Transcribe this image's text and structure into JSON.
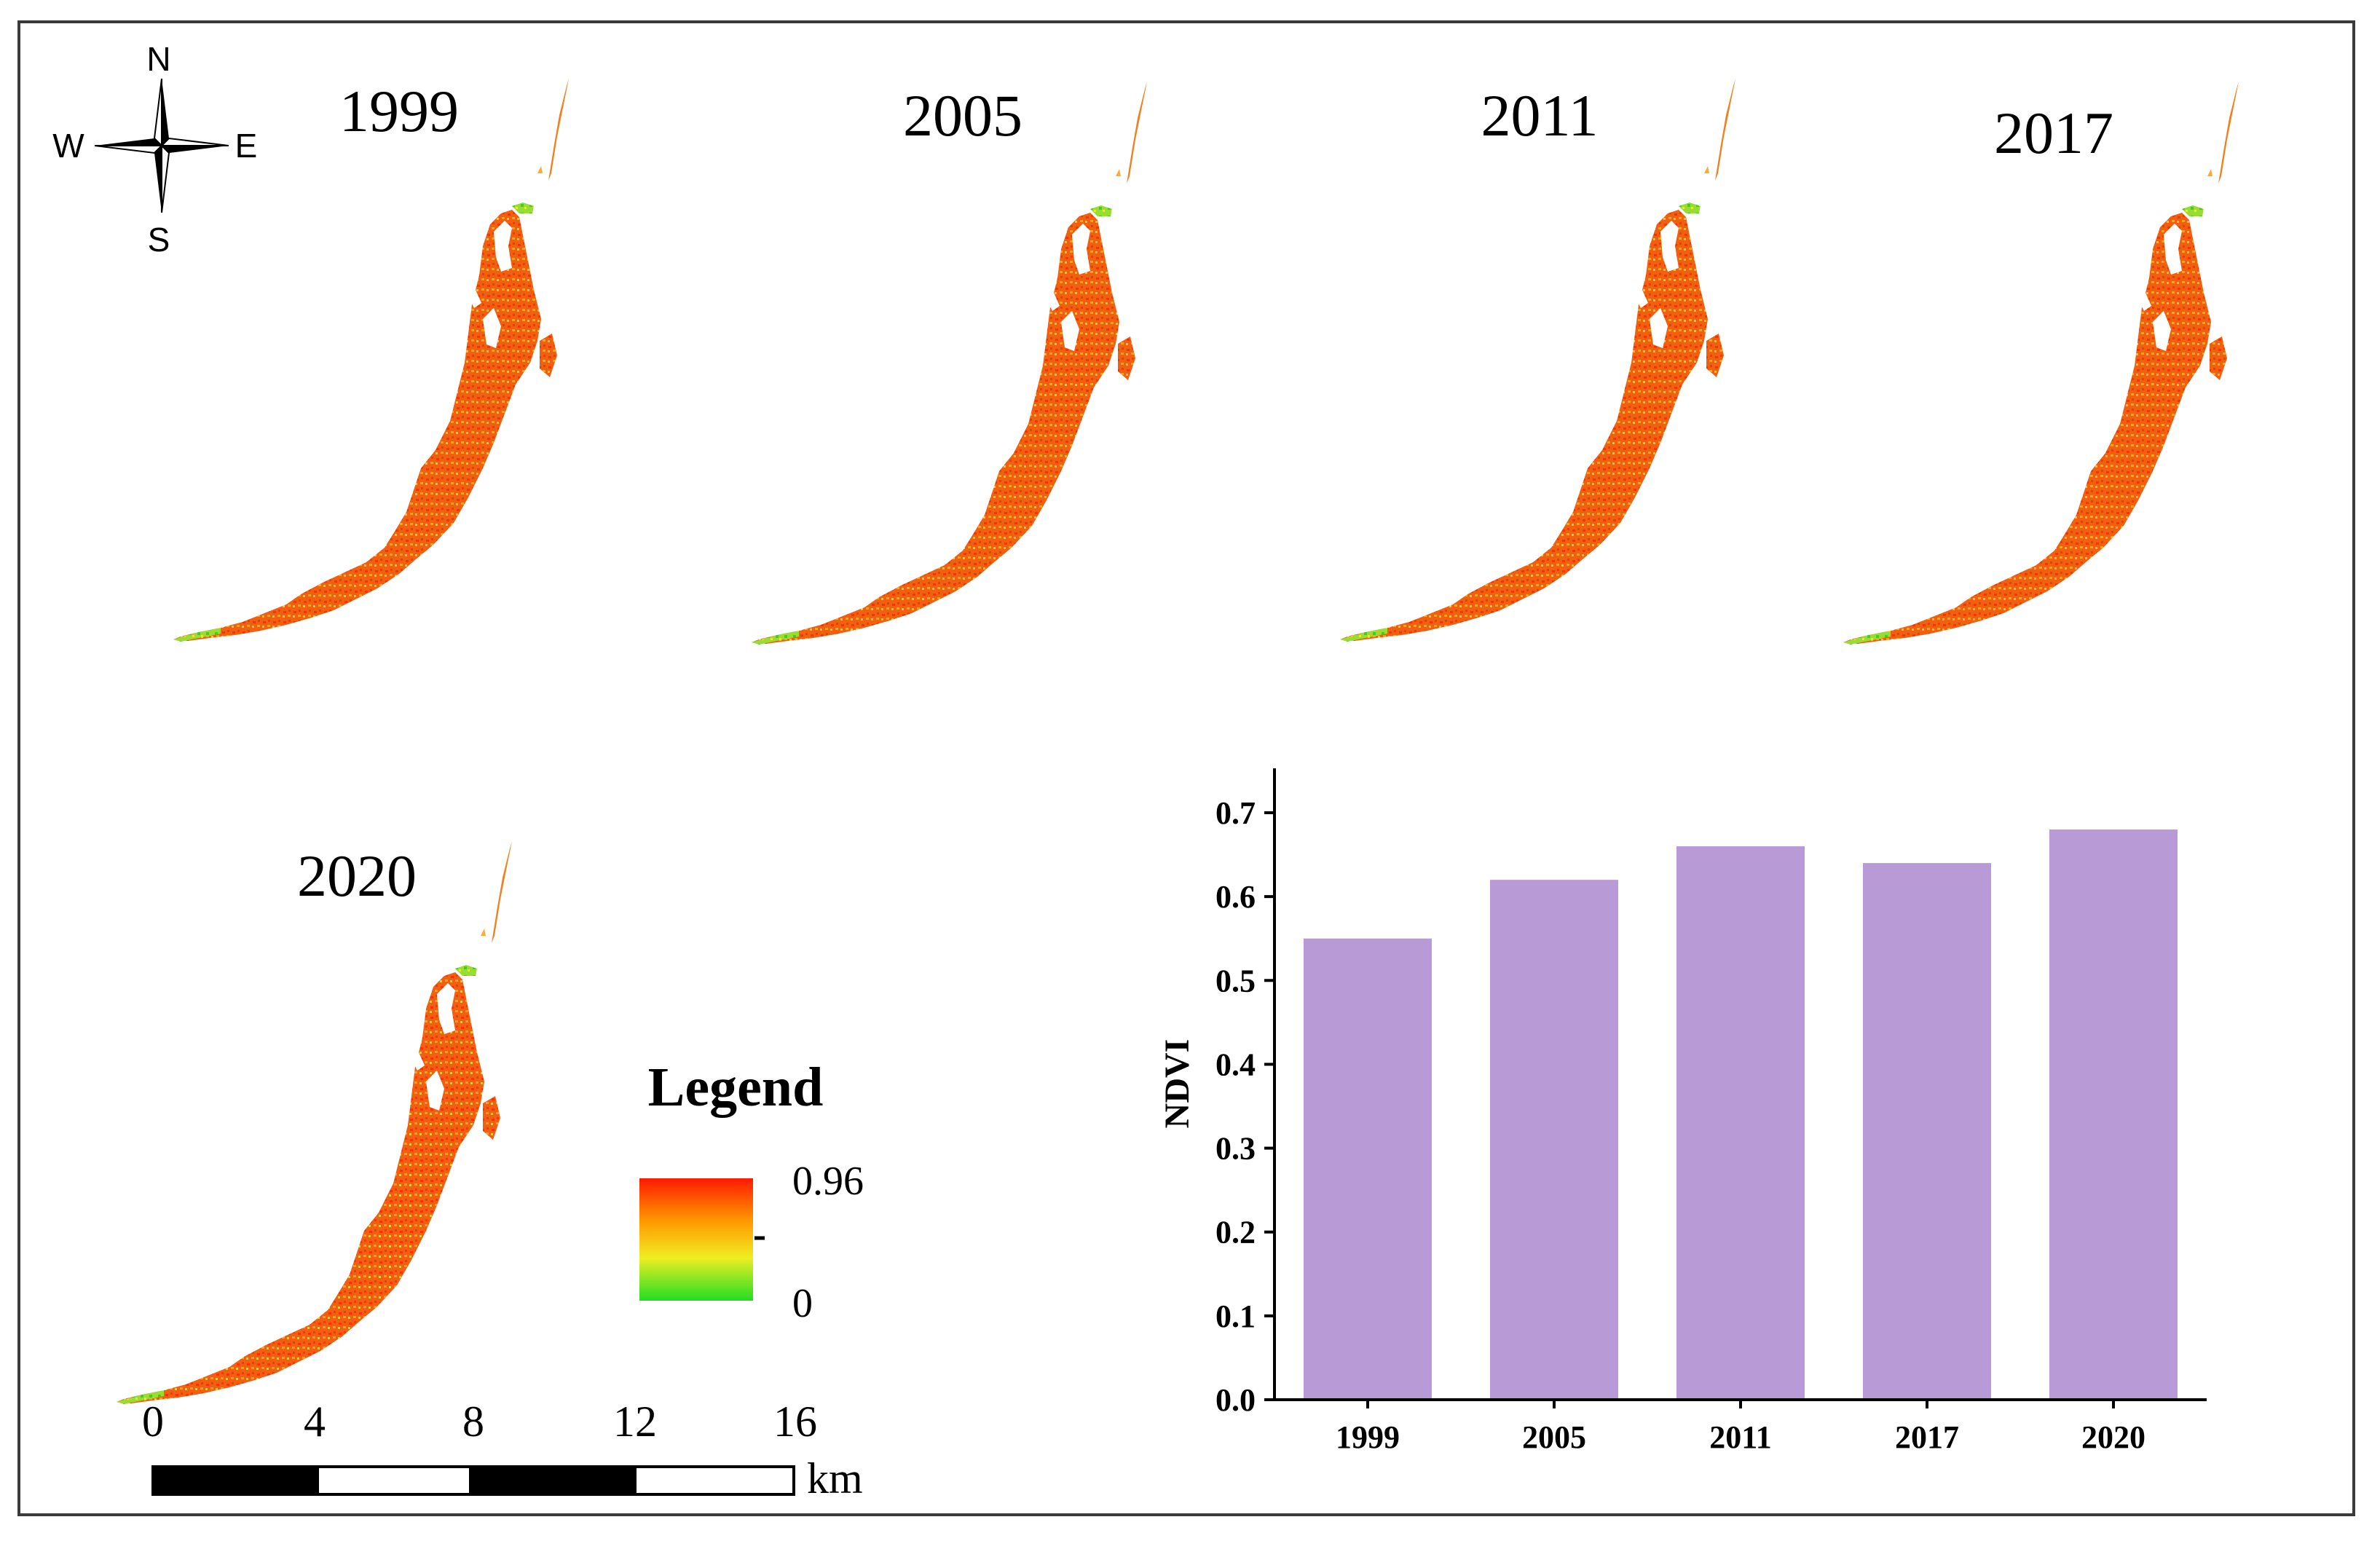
{
  "maps": [
    {
      "year": "1999"
    },
    {
      "year": "2005"
    },
    {
      "year": "2011"
    },
    {
      "year": "2017"
    },
    {
      "year": "2020"
    }
  ],
  "compass": {
    "n": "N",
    "s": "S",
    "e": "E",
    "w": "W"
  },
  "legend": {
    "title": "Legend",
    "max_label": "0.96",
    "min_label": "0",
    "color_low": "#22dd22",
    "color_mid": "#eeee22",
    "color_high": "#ff1a00"
  },
  "scale_bar": {
    "ticks": [
      "0",
      "4",
      "8",
      "12",
      "16"
    ],
    "unit": "km"
  },
  "chart_data": {
    "type": "bar",
    "categories": [
      "1999",
      "2005",
      "2011",
      "2017",
      "2020"
    ],
    "values": [
      0.55,
      0.62,
      0.66,
      0.64,
      0.68
    ],
    "ylabel": "NDVI",
    "xlabel": "",
    "ylim": [
      0.0,
      0.75
    ],
    "yticks": [
      "0.0",
      "0.1",
      "0.2",
      "0.3",
      "0.4",
      "0.5",
      "0.6",
      "0.7"
    ],
    "bar_color": "#b89bd6"
  }
}
